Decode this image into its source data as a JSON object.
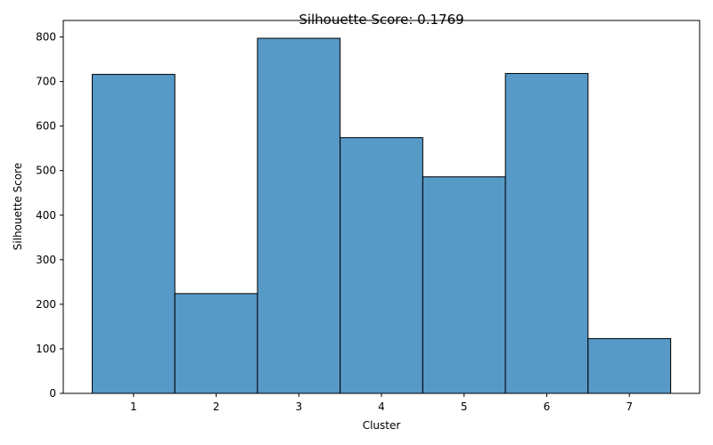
{
  "chart_data": {
    "type": "bar",
    "title": "Silhouette Score: 0.1769",
    "xlabel": "Cluster",
    "ylabel": "Silhouette Score",
    "categories": [
      "1",
      "2",
      "3",
      "4",
      "5",
      "6",
      "7"
    ],
    "values": [
      716,
      224,
      797,
      574,
      486,
      718,
      123
    ],
    "ylim": [
      0,
      837
    ],
    "yticks": [
      0,
      100,
      200,
      300,
      400,
      500,
      600,
      700,
      800
    ],
    "grid": false,
    "colors": {
      "bar_fill": "#5799c7",
      "bar_edge": "#000000",
      "axis": "#000000"
    }
  }
}
